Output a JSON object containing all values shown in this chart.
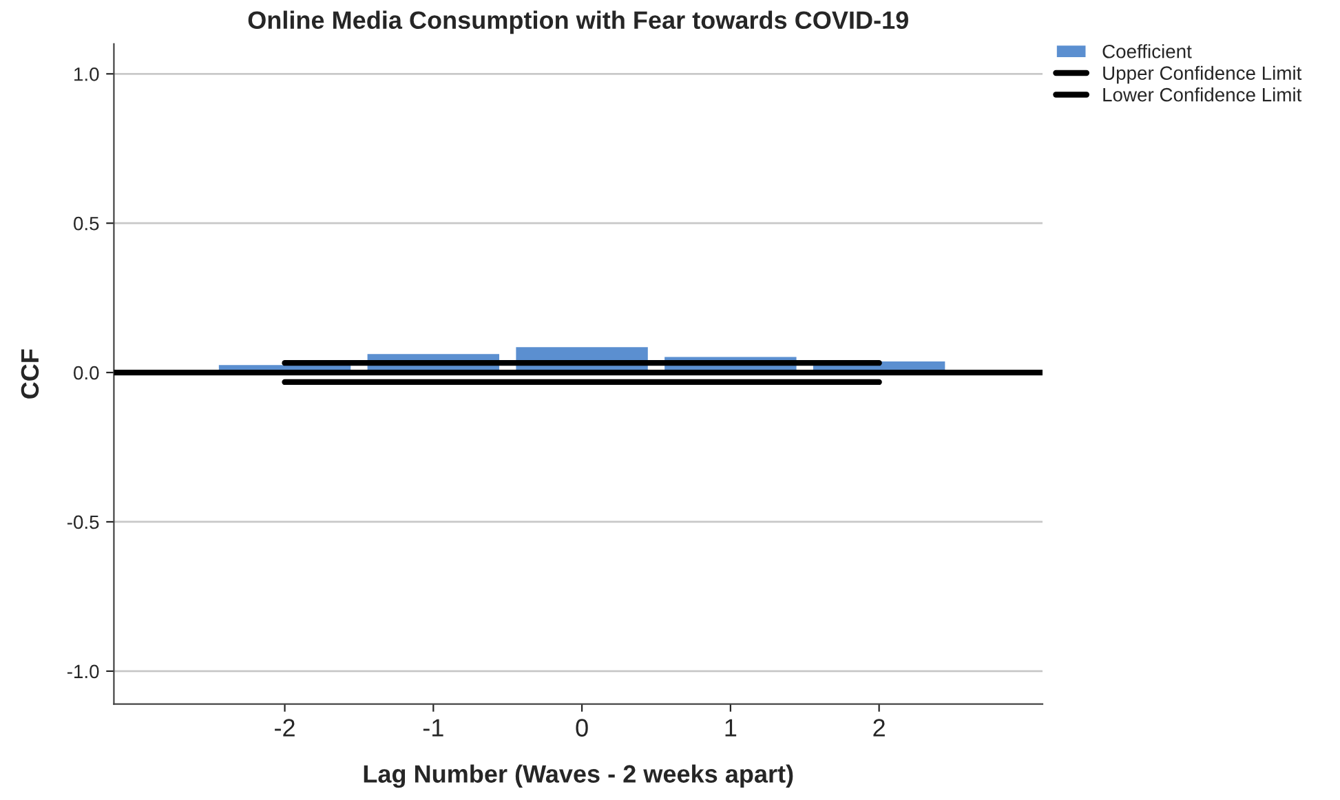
{
  "chart_data": {
    "type": "bar",
    "title": "Online Media Consumption with Fear towards COVID-19",
    "xlabel": "Lag Number (Waves - 2 weeks apart)",
    "ylabel": "CCF",
    "x": [
      -2,
      -1,
      0,
      1,
      2
    ],
    "series": [
      {
        "name": "Coefficient",
        "color": "#5b8fd0",
        "values": [
          0.028,
          0.065,
          0.088,
          0.055,
          0.04
        ]
      },
      {
        "name": "Upper Confidence Limit",
        "type": "line",
        "color": "#000000",
        "values": [
          0.032,
          0.032,
          0.032,
          0.032,
          0.032
        ]
      },
      {
        "name": "Lower Confidence Limit",
        "type": "line",
        "color": "#000000",
        "values": [
          -0.032,
          -0.032,
          -0.032,
          -0.032,
          -0.032
        ]
      }
    ],
    "xlim": [
      -3.15,
      3.1
    ],
    "xticks": [
      {
        "value": -2,
        "label": "-2"
      },
      {
        "value": -1,
        "label": "-1"
      },
      0,
      1,
      2
    ],
    "ylim": [
      -1.11,
      1.1
    ],
    "yticks": [
      {
        "value": -1,
        "label": "-1.0"
      },
      {
        "value": -0.5,
        "label": "-0.5"
      },
      {
        "value": 0,
        "label": "0.0"
      },
      {
        "value": 0.5,
        "label": "0.5"
      },
      {
        "value": 1,
        "label": "1.0"
      }
    ],
    "ref_lines": [
      {
        "axis": "y",
        "value": 0,
        "color": "#000000"
      }
    ],
    "grid": "y",
    "legend": "top right",
    "marker": "none",
    "line_style": "solid"
  }
}
